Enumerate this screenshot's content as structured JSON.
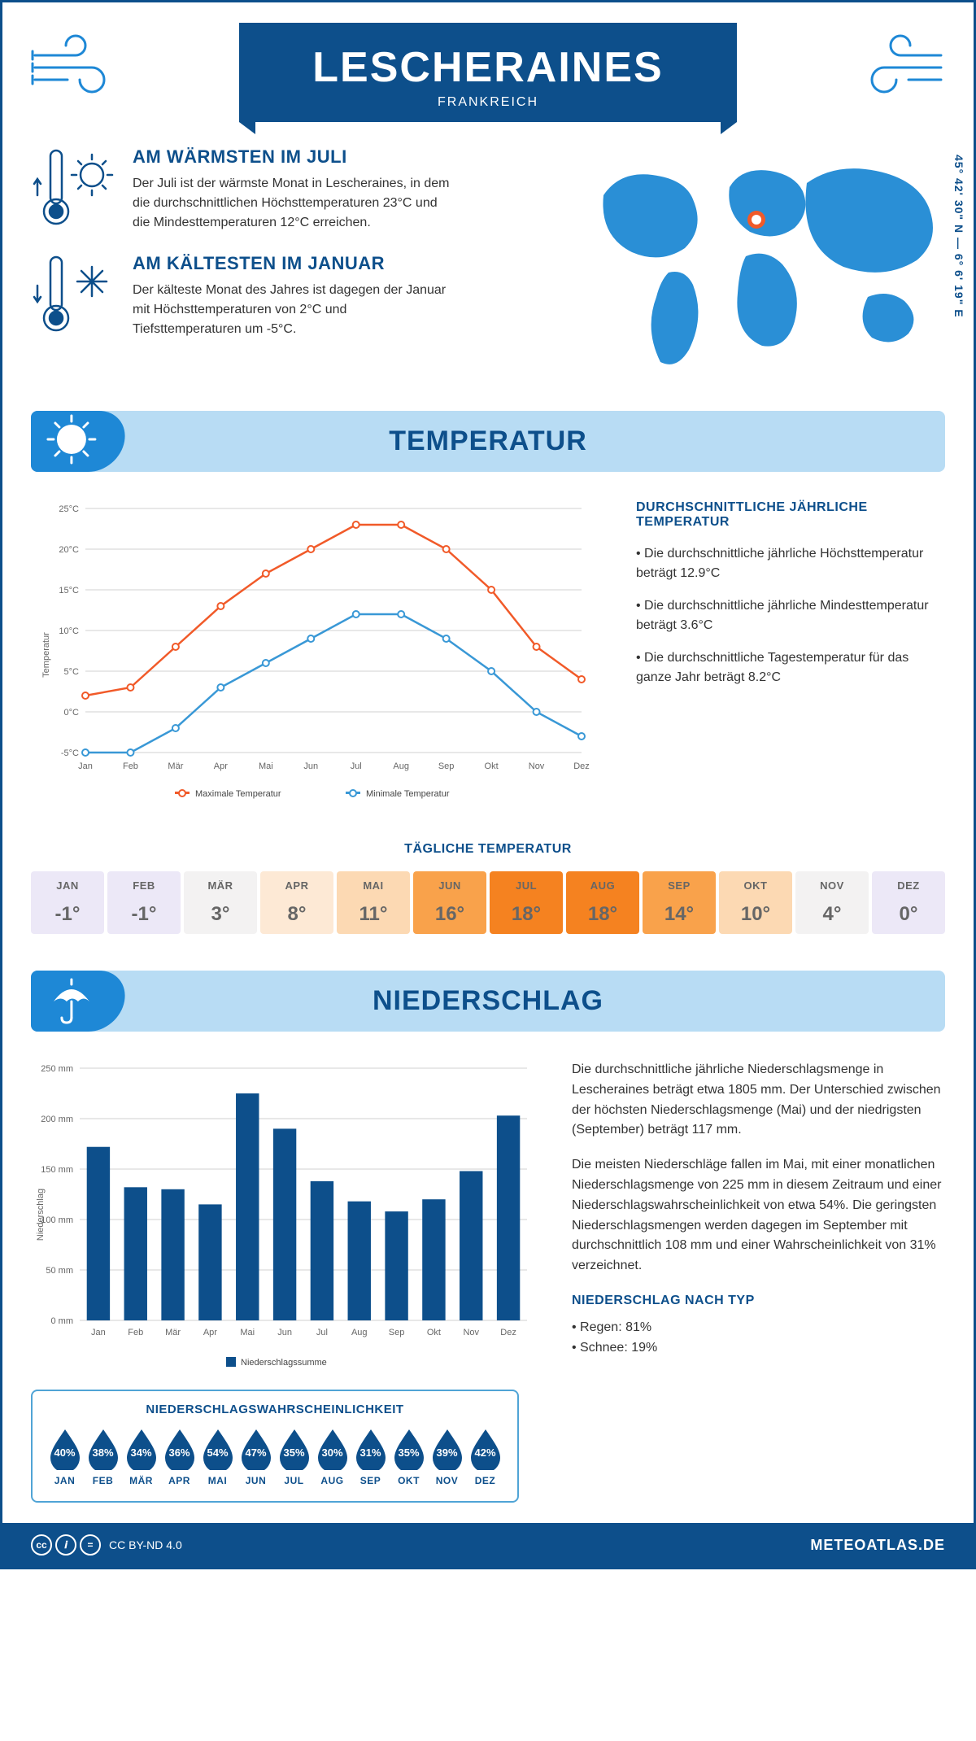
{
  "header": {
    "title": "LESCHERAINES",
    "subtitle": "FRANKREICH",
    "coords": "45° 42' 30\" N — 6° 6' 19\" E"
  },
  "facts": {
    "warm": {
      "title": "AM WÄRMSTEN IM JULI",
      "text": "Der Juli ist der wärmste Monat in Lescheraines, in dem die durchschnittlichen Höchsttemperaturen 23°C und die Mindesttemperaturen 12°C erreichen."
    },
    "cold": {
      "title": "AM KÄLTESTEN IM JANUAR",
      "text": "Der kälteste Monat des Jahres ist dagegen der Januar mit Höchsttemperaturen von 2°C und Tiefsttemperaturen um -5°C."
    }
  },
  "temperature": {
    "banner": "TEMPERATUR",
    "chart": {
      "y_label": "Temperatur",
      "y_ticks": [
        "-5°C",
        "0°C",
        "5°C",
        "10°C",
        "15°C",
        "20°C",
        "25°C"
      ],
      "y_values": [
        -5,
        0,
        5,
        10,
        15,
        20,
        25
      ],
      "months": [
        "Jan",
        "Feb",
        "Mär",
        "Apr",
        "Mai",
        "Jun",
        "Jul",
        "Aug",
        "Sep",
        "Okt",
        "Nov",
        "Dez"
      ],
      "max": {
        "label": "Maximale Temperatur",
        "color": "#f15a29",
        "data": [
          2,
          3,
          8,
          13,
          17,
          20,
          23,
          23,
          20,
          15,
          8,
          4
        ]
      },
      "min": {
        "label": "Minimale Temperatur",
        "color": "#3998d6",
        "data": [
          -5,
          -5,
          -2,
          3,
          6,
          9,
          12,
          12,
          9,
          5,
          0,
          -3
        ]
      },
      "grid_color": "#d0d0d0",
      "bg": "#ffffff"
    },
    "info": {
      "title": "DURCHSCHNITTLICHE JÄHRLICHE TEMPERATUR",
      "b1": "• Die durchschnittliche jährliche Höchsttemperatur beträgt 12.9°C",
      "b2": "• Die durchschnittliche jährliche Mindesttemperatur beträgt 3.6°C",
      "b3": "• Die durchschnittliche Tagestemperatur für das ganze Jahr beträgt 8.2°C"
    },
    "daily": {
      "title": "TÄGLICHE TEMPERATUR",
      "months": [
        "JAN",
        "FEB",
        "MÄR",
        "APR",
        "MAI",
        "JUN",
        "JUL",
        "AUG",
        "SEP",
        "OKT",
        "NOV",
        "DEZ"
      ],
      "values": [
        "-1°",
        "-1°",
        "3°",
        "8°",
        "11°",
        "16°",
        "18°",
        "18°",
        "14°",
        "10°",
        "4°",
        "0°"
      ],
      "colors": [
        "#ece8f7",
        "#ece8f7",
        "#f3f2f2",
        "#fde9d5",
        "#fcd9b3",
        "#f9a24b",
        "#f58220",
        "#f58220",
        "#f9a24b",
        "#fcd9b3",
        "#f3f2f2",
        "#ece8f7"
      ]
    }
  },
  "precipitation": {
    "banner": "NIEDERSCHLAG",
    "chart": {
      "y_label": "Niederschlag",
      "y_ticks": [
        "0 mm",
        "50 mm",
        "100 mm",
        "150 mm",
        "200 mm",
        "250 mm"
      ],
      "y_values": [
        0,
        50,
        100,
        150,
        200,
        250
      ],
      "months": [
        "Jan",
        "Feb",
        "Mär",
        "Apr",
        "Mai",
        "Jun",
        "Jul",
        "Aug",
        "Sep",
        "Okt",
        "Nov",
        "Dez"
      ],
      "data": [
        172,
        132,
        130,
        115,
        225,
        190,
        138,
        118,
        108,
        120,
        148,
        203
      ],
      "bar_color": "#0d4f8b",
      "legend": "Niederschlagssumme"
    },
    "text": {
      "p1": "Die durchschnittliche jährliche Niederschlagsmenge in Lescheraines beträgt etwa 1805 mm. Der Unterschied zwischen der höchsten Niederschlagsmenge (Mai) und der niedrigsten (September) beträgt 117 mm.",
      "p2": "Die meisten Niederschläge fallen im Mai, mit einer monatlichen Niederschlagsmenge von 225 mm in diesem Zeitraum und einer Niederschlagswahrscheinlichkeit von etwa 54%. Die geringsten Niederschlagsmengen werden dagegen im September mit durchschnittlich 108 mm und einer Wahrscheinlichkeit von 31% verzeichnet.",
      "h": "NIEDERSCHLAG NACH TYP",
      "t1": "• Regen: 81%",
      "t2": "• Schnee: 19%"
    },
    "prob": {
      "title": "NIEDERSCHLAGSWAHRSCHEINLICHKEIT",
      "months": [
        "JAN",
        "FEB",
        "MÄR",
        "APR",
        "MAI",
        "JUN",
        "JUL",
        "AUG",
        "SEP",
        "OKT",
        "NOV",
        "DEZ"
      ],
      "values": [
        "40%",
        "38%",
        "34%",
        "36%",
        "54%",
        "47%",
        "35%",
        "30%",
        "31%",
        "35%",
        "39%",
        "42%"
      ]
    }
  },
  "footer": {
    "license": "CC BY-ND 4.0",
    "site": "METEOATLAS.DE"
  },
  "colors": {
    "primary": "#0d4f8b",
    "lightblue": "#b8dcf4",
    "midblue": "#1e88d6"
  }
}
